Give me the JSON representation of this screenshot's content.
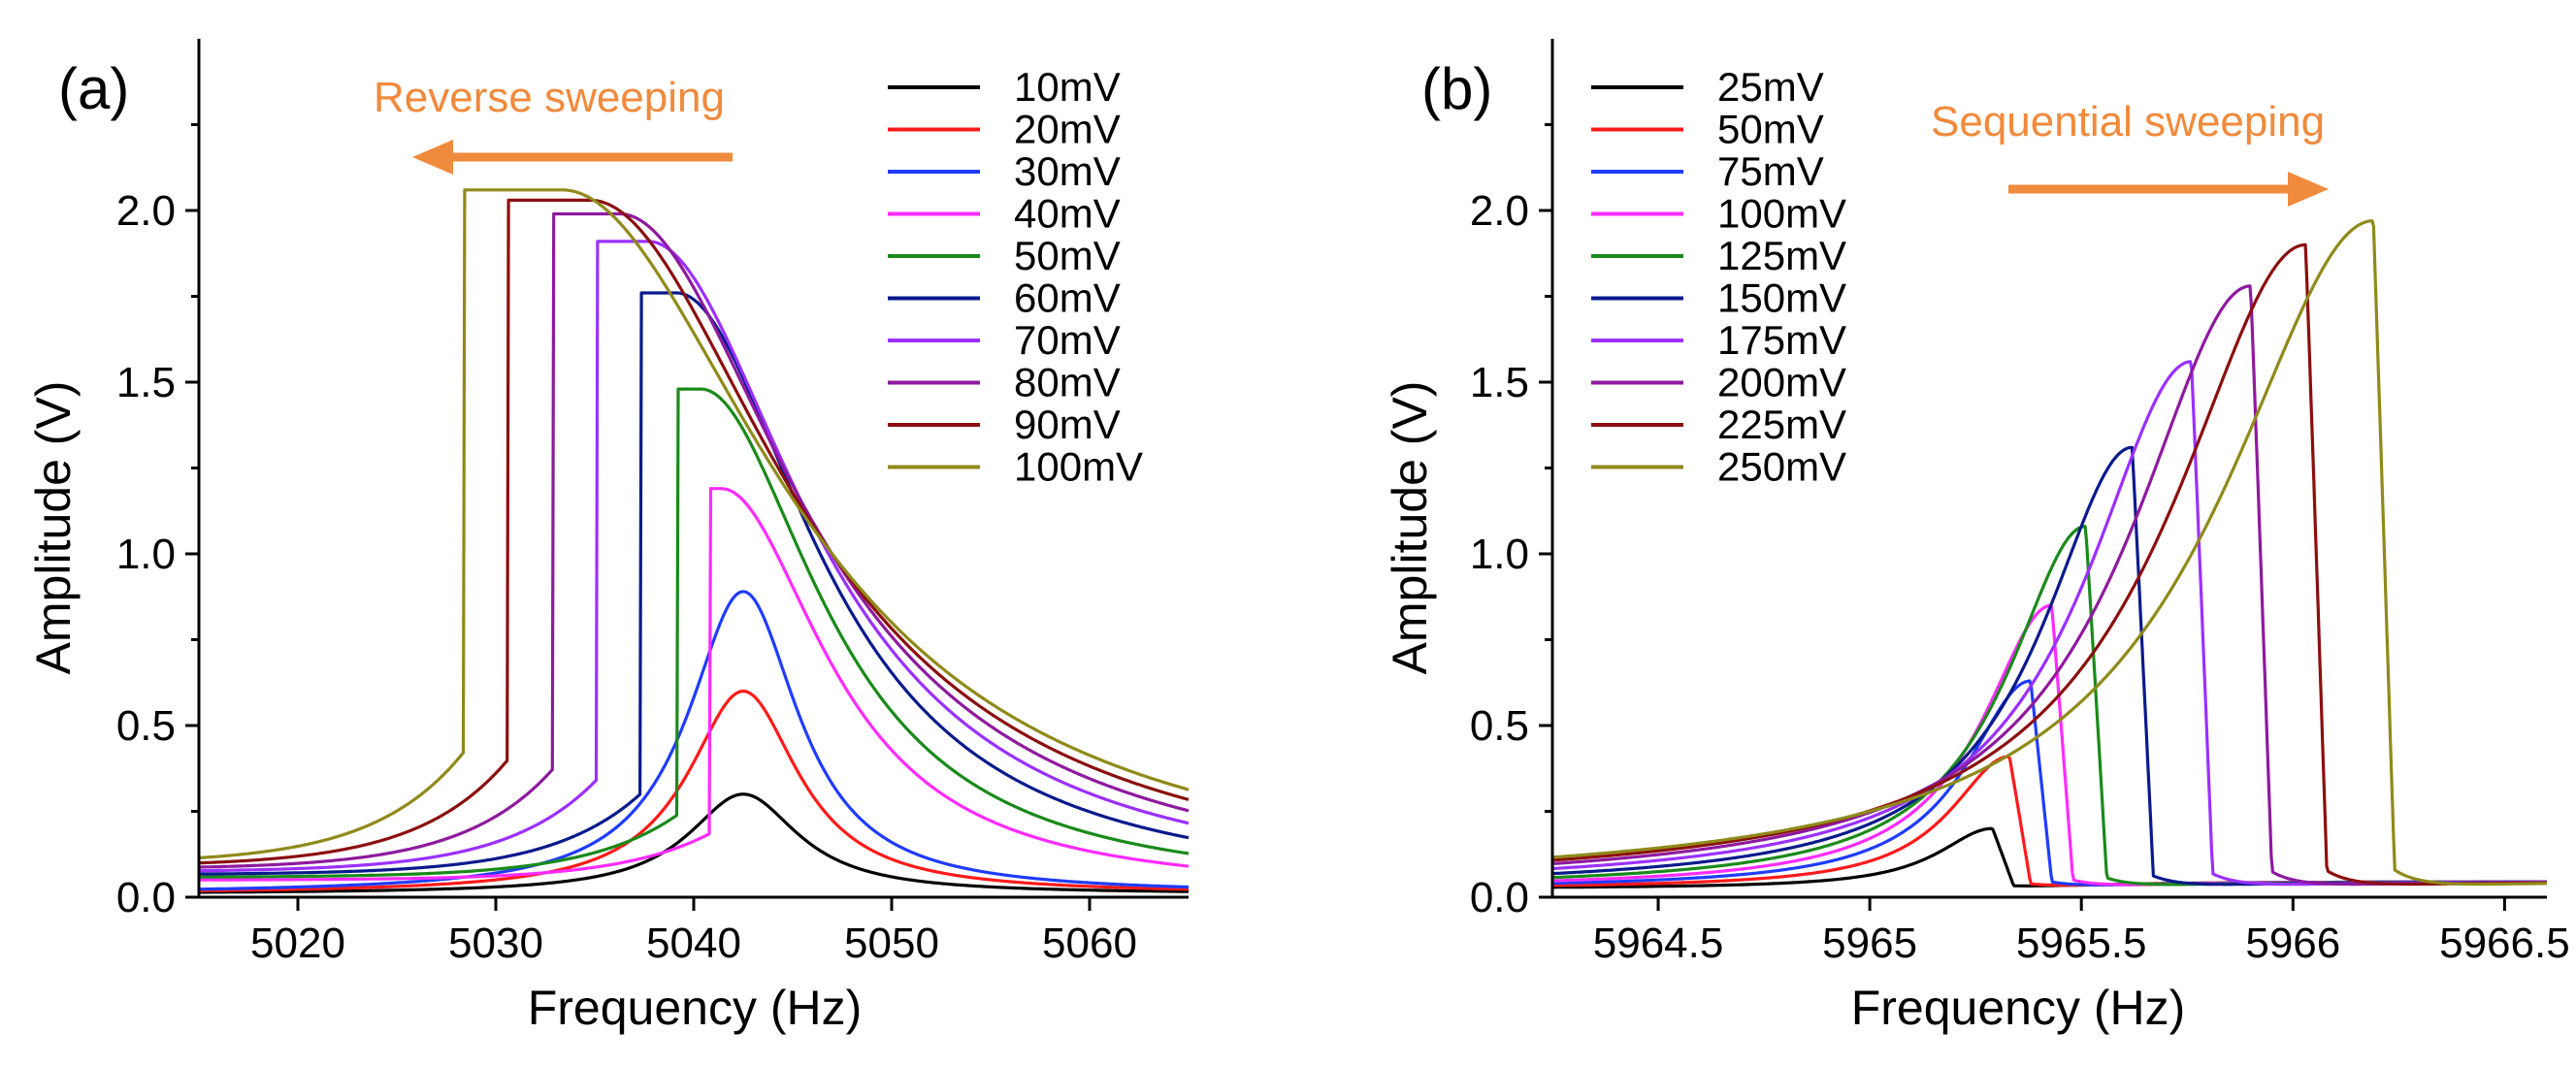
{
  "chart_data": [
    {
      "type": "line",
      "panel_label": "(a)",
      "xlabel": "Frequency (Hz)",
      "ylabel": "Amplitude (V)",
      "xlim": [
        5015,
        5065
      ],
      "ylim": [
        0,
        2.5
      ],
      "xticks": [
        5020,
        5030,
        5040,
        5050,
        5060
      ],
      "xtick_labels": [
        "5020",
        "5030",
        "5040",
        "5050",
        "5060"
      ],
      "yticks": [
        0,
        0.5,
        1.0,
        1.5,
        2.0
      ],
      "ytick_labels": [
        "0.0",
        "0.5",
        "1.0",
        "1.5",
        "2.0"
      ],
      "annotation": {
        "text": "Reverse sweeping",
        "direction": "left",
        "color": "#f08a3c"
      },
      "legend_position": "top-right",
      "model": {
        "f0": 5042.5,
        "gamma": 3.4,
        "baseline": 0.01,
        "sweep": "reverse"
      },
      "series": [
        {
          "name": "10mV",
          "color": "#000000",
          "peak": 0.3,
          "jump_freq": null,
          "jump_amp": null
        },
        {
          "name": "20mV",
          "color": "#ff1a1a",
          "peak": 0.6,
          "jump_freq": null,
          "jump_amp": null
        },
        {
          "name": "30mV",
          "color": "#1f3cff",
          "peak": 0.89,
          "jump_freq": null,
          "jump_amp": null
        },
        {
          "name": "40mV",
          "color": "#ff2bff",
          "peak": 1.19,
          "jump_freq": 5040.8,
          "jump_amp": 1.19
        },
        {
          "name": "50mV",
          "color": "#1a8a1a",
          "peak": 1.48,
          "jump_freq": 5039.2,
          "jump_amp": 1.48
        },
        {
          "name": "60mV",
          "color": "#0a1a8c",
          "peak": 1.76,
          "jump_freq": 5037.3,
          "jump_amp": 1.76
        },
        {
          "name": "70mV",
          "color": "#9b30ff",
          "peak": 1.91,
          "jump_freq": 5035.1,
          "jump_amp": 1.91
        },
        {
          "name": "80mV",
          "color": "#8e1a9e",
          "peak": 1.99,
          "jump_freq": 5032.9,
          "jump_amp": 1.99
        },
        {
          "name": "90mV",
          "color": "#8b0f0f",
          "peak": 2.03,
          "jump_freq": 5030.6,
          "jump_amp": 2.03
        },
        {
          "name": "100mV",
          "color": "#8f8a1a",
          "peak": 2.06,
          "jump_freq": 5028.4,
          "jump_amp": 2.06
        }
      ]
    },
    {
      "type": "line",
      "panel_label": "(b)",
      "xlabel": "Frequency (Hz)",
      "ylabel": "Amplitude (V)",
      "xlim": [
        5964.25,
        5966.6
      ],
      "ylim": [
        0,
        2.5
      ],
      "xticks": [
        5964.5,
        5965,
        5965.5,
        5966,
        5966.5
      ],
      "xtick_labels": [
        "5964.5",
        "5965",
        "5965.5",
        "5966",
        "5966.5"
      ],
      "yticks": [
        0,
        0.5,
        1.0,
        1.5,
        2.0
      ],
      "ytick_labels": [
        "0.0",
        "0.5",
        "1.0",
        "1.5",
        "2.0"
      ],
      "annotation": {
        "text": "Sequential sweeping",
        "direction": "right",
        "color": "#f08a3c"
      },
      "legend_position": "top-left",
      "model": {
        "f0": 5965.3,
        "gamma": 0.16,
        "baseline": 0.025,
        "sweep": "sequential"
      },
      "series": [
        {
          "name": "25mV",
          "color": "#000000",
          "peak": 0.2,
          "jump_freq": 5965.29,
          "jump_amp": 0.2
        },
        {
          "name": "50mV",
          "color": "#ff1a1a",
          "peak": 0.41,
          "jump_freq": 5965.33,
          "jump_amp": 0.41
        },
        {
          "name": "75mV",
          "color": "#1f3cff",
          "peak": 0.63,
          "jump_freq": 5965.38,
          "jump_amp": 0.63
        },
        {
          "name": "100mV",
          "color": "#ff2bff",
          "peak": 0.85,
          "jump_freq": 5965.43,
          "jump_amp": 0.85
        },
        {
          "name": "125mV",
          "color": "#1a8a1a",
          "peak": 1.08,
          "jump_freq": 5965.51,
          "jump_amp": 1.08
        },
        {
          "name": "150mV",
          "color": "#0a1a8c",
          "peak": 1.31,
          "jump_freq": 5965.62,
          "jump_amp": 1.31
        },
        {
          "name": "175mV",
          "color": "#9b30ff",
          "peak": 1.56,
          "jump_freq": 5965.76,
          "jump_amp": 1.56
        },
        {
          "name": "200mV",
          "color": "#8e1a9e",
          "peak": 1.78,
          "jump_freq": 5965.9,
          "jump_amp": 1.78
        },
        {
          "name": "225mV",
          "color": "#8b0f0f",
          "peak": 1.9,
          "jump_freq": 5966.03,
          "jump_amp": 1.9
        },
        {
          "name": "250mV",
          "color": "#8f8a1a",
          "peak": 1.97,
          "jump_freq": 5966.19,
          "jump_amp": 1.97
        }
      ]
    }
  ]
}
